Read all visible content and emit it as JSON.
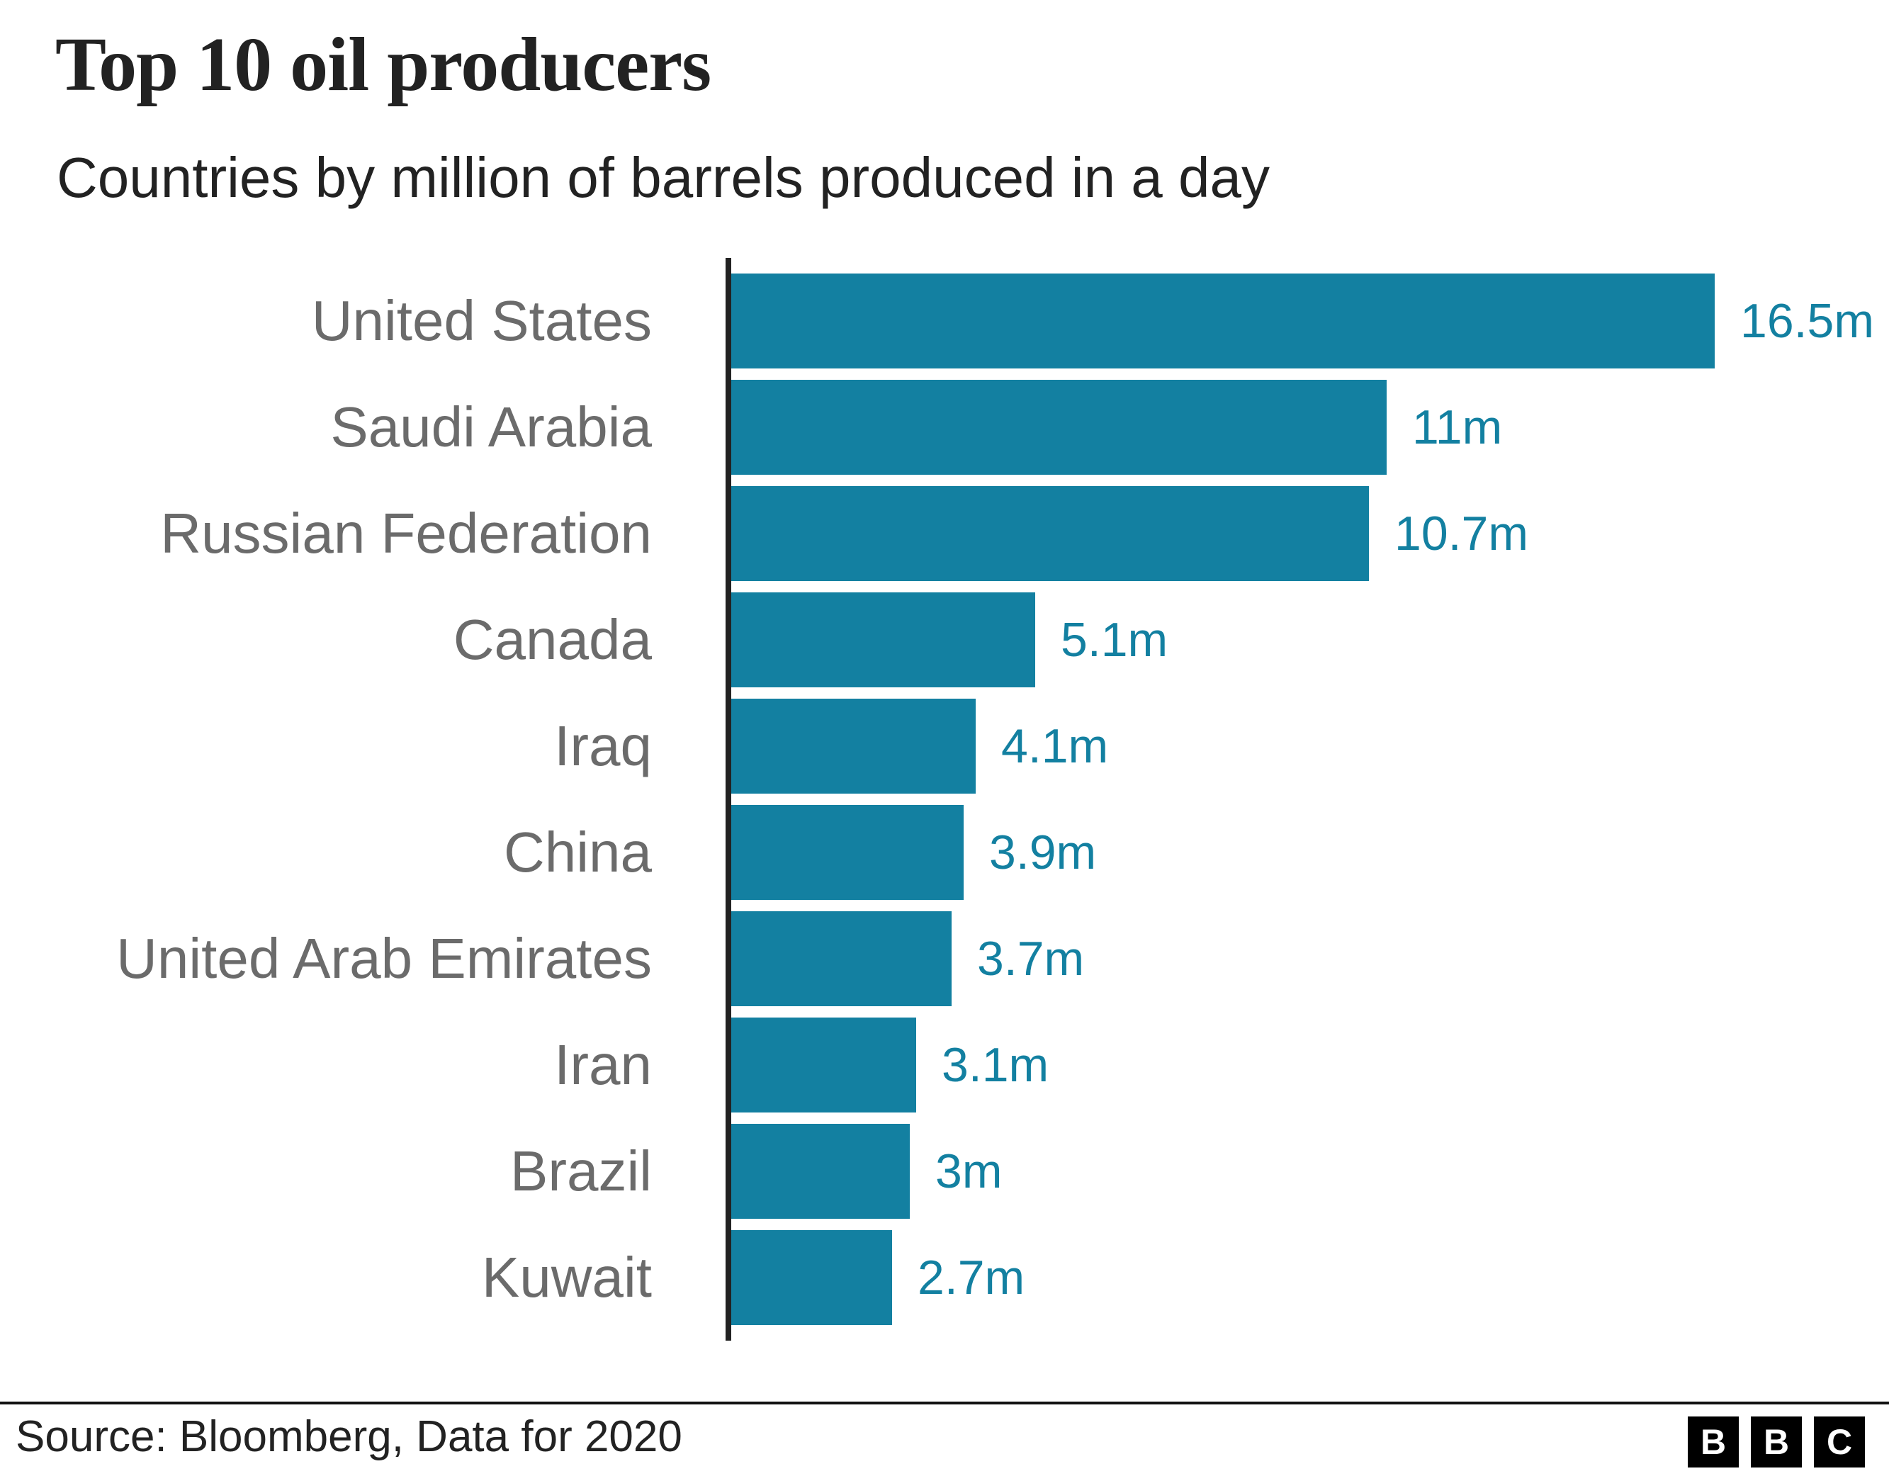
{
  "chart_data": {
    "type": "bar",
    "orientation": "horizontal",
    "title": "Top 10 oil producers",
    "subtitle": "Countries by million of barrels produced in a day",
    "categories": [
      "United States",
      "Saudi Arabia",
      "Russian Federation",
      "Canada",
      "Iraq",
      "China",
      "United Arab Emirates",
      "Iran",
      "Brazil",
      "Kuwait"
    ],
    "values": [
      16.5,
      11,
      10.7,
      5.1,
      4.1,
      3.9,
      3.7,
      3.1,
      3,
      2.7
    ],
    "value_labels": [
      "16.5m",
      "11m",
      "10.7m",
      "5.1m",
      "4.1m",
      "3.9m",
      "3.7m",
      "3.1m",
      "3m",
      "2.7m"
    ],
    "xlim": [
      0,
      16.5
    ],
    "grid": false,
    "legend": false,
    "bar_color": "#1380A1",
    "value_label_color": "#1380A1",
    "category_label_color": "#6b6b6b",
    "axis_color": "#222222",
    "title_color": "#222222"
  },
  "footer": {
    "source": "Source: Bloomberg, Data for 2020",
    "logo_letters": [
      "B",
      "B",
      "C"
    ]
  }
}
